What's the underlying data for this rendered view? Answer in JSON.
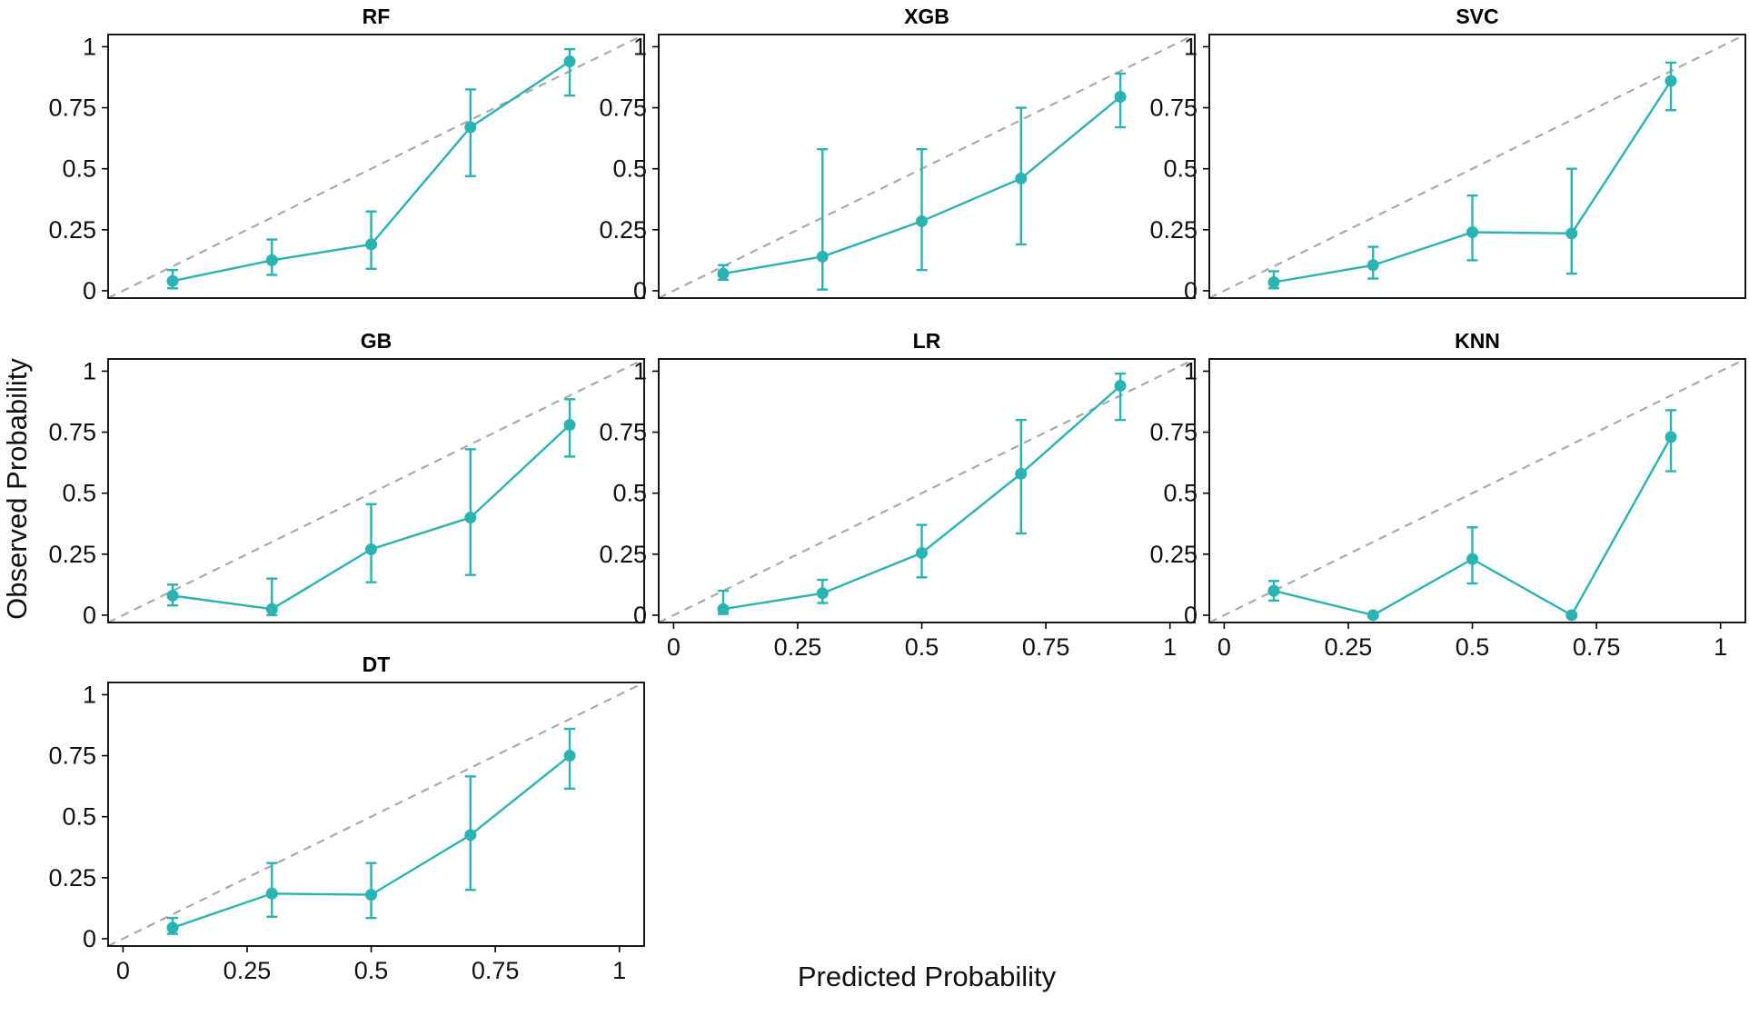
{
  "figure": {
    "xlabel": "Predicted Probability",
    "ylabel": "Observed Probability",
    "x_ticks": [
      0,
      0.25,
      0.5,
      0.75,
      1
    ],
    "x_tick_labels": [
      "0",
      "0.25",
      "0.5",
      "0.75",
      "1"
    ],
    "y_ticks": [
      0,
      0.25,
      0.5,
      0.75,
      1
    ],
    "y_tick_labels": [
      "0",
      "0.25",
      "0.5",
      "0.75",
      "1"
    ],
    "colors": {
      "series": "#2ab3b3",
      "reference": "#a9a9a9",
      "frame": "#000000"
    }
  },
  "chart_data": [
    {
      "type": "line",
      "title": "RF",
      "xlim": [
        -0.03,
        1.05
      ],
      "ylim": [
        -0.03,
        1.05
      ],
      "reference_line": "y = x",
      "x": [
        0.1,
        0.3,
        0.5,
        0.7,
        0.9
      ],
      "y": [
        0.04,
        0.125,
        0.19,
        0.67,
        0.94
      ],
      "ci_low": [
        0.01,
        0.065,
        0.09,
        0.47,
        0.8
      ],
      "ci_high": [
        0.085,
        0.21,
        0.325,
        0.825,
        0.99
      ]
    },
    {
      "type": "line",
      "title": "XGB",
      "xlim": [
        -0.03,
        1.05
      ],
      "ylim": [
        -0.03,
        1.05
      ],
      "reference_line": "y = x",
      "x": [
        0.1,
        0.3,
        0.5,
        0.7,
        0.9
      ],
      "y": [
        0.07,
        0.14,
        0.285,
        0.46,
        0.795
      ],
      "ci_low": [
        0.045,
        0.005,
        0.085,
        0.19,
        0.67
      ],
      "ci_high": [
        0.105,
        0.58,
        0.58,
        0.75,
        0.89
      ]
    },
    {
      "type": "line",
      "title": "SVC",
      "xlim": [
        -0.03,
        1.05
      ],
      "ylim": [
        -0.03,
        1.05
      ],
      "reference_line": "y = x",
      "x": [
        0.1,
        0.3,
        0.5,
        0.7,
        0.9
      ],
      "y": [
        0.035,
        0.105,
        0.24,
        0.235,
        0.86
      ],
      "ci_low": [
        0.01,
        0.05,
        0.125,
        0.07,
        0.74
      ],
      "ci_high": [
        0.08,
        0.18,
        0.39,
        0.5,
        0.935
      ]
    },
    {
      "type": "line",
      "title": "GB",
      "xlim": [
        -0.03,
        1.05
      ],
      "ylim": [
        -0.03,
        1.05
      ],
      "reference_line": "y = x",
      "x": [
        0.1,
        0.3,
        0.5,
        0.7,
        0.9
      ],
      "y": [
        0.08,
        0.025,
        0.27,
        0.4,
        0.78
      ],
      "ci_low": [
        0.04,
        0.0,
        0.135,
        0.165,
        0.65
      ],
      "ci_high": [
        0.125,
        0.15,
        0.455,
        0.68,
        0.885
      ]
    },
    {
      "type": "line",
      "title": "LR",
      "xlim": [
        -0.03,
        1.05
      ],
      "ylim": [
        -0.03,
        1.05
      ],
      "reference_line": "y = x",
      "x": [
        0.1,
        0.3,
        0.5,
        0.7,
        0.9
      ],
      "y": [
        0.025,
        0.09,
        0.255,
        0.58,
        0.94
      ],
      "ci_low": [
        0.005,
        0.05,
        0.155,
        0.335,
        0.8
      ],
      "ci_high": [
        0.1,
        0.145,
        0.37,
        0.8,
        0.99
      ]
    },
    {
      "type": "line",
      "title": "KNN",
      "xlim": [
        -0.03,
        1.05
      ],
      "ylim": [
        -0.03,
        1.05
      ],
      "reference_line": "y = x",
      "x": [
        0.1,
        0.3,
        0.5,
        0.7,
        0.9
      ],
      "y": [
        0.1,
        0.0,
        0.23,
        0.0,
        0.73
      ],
      "ci_low": [
        0.06,
        0.0,
        0.13,
        0.0,
        0.59
      ],
      "ci_high": [
        0.14,
        0.0,
        0.36,
        0.0,
        0.84
      ]
    },
    {
      "type": "line",
      "title": "DT",
      "xlim": [
        -0.03,
        1.05
      ],
      "ylim": [
        -0.03,
        1.05
      ],
      "reference_line": "y = x",
      "x": [
        0.1,
        0.3,
        0.5,
        0.7,
        0.9
      ],
      "y": [
        0.045,
        0.185,
        0.18,
        0.425,
        0.75
      ],
      "ci_low": [
        0.02,
        0.09,
        0.085,
        0.2,
        0.615
      ],
      "ci_high": [
        0.085,
        0.31,
        0.31,
        0.665,
        0.86
      ]
    }
  ]
}
